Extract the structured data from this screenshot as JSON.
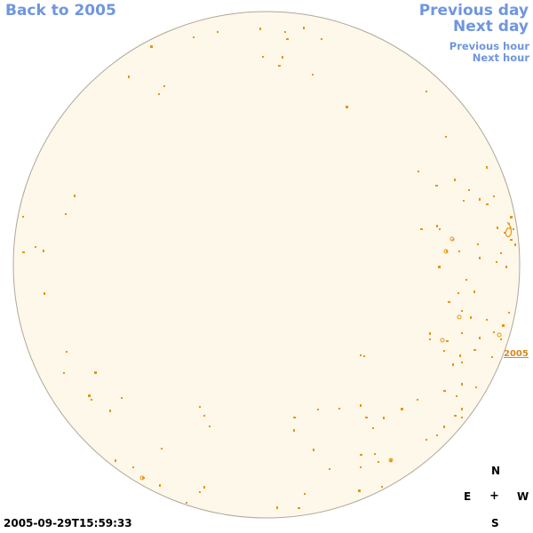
{
  "navigation": {
    "back_label": "Back to 2005",
    "previous_day_label": "Previous day",
    "next_day_label": "Next day",
    "previous_hour_label": "Previous hour",
    "next_hour_label": "Next hour"
  },
  "sun_disk": {
    "fill_color": "#fef8ea",
    "border_color": "#b0a898",
    "marker_color": "#e89410"
  },
  "region_label": "2005",
  "compass": {
    "north": "N",
    "east": "E",
    "center": "+",
    "west": "W",
    "south": "S"
  },
  "timestamp": "2005-09-29T15:59:33"
}
